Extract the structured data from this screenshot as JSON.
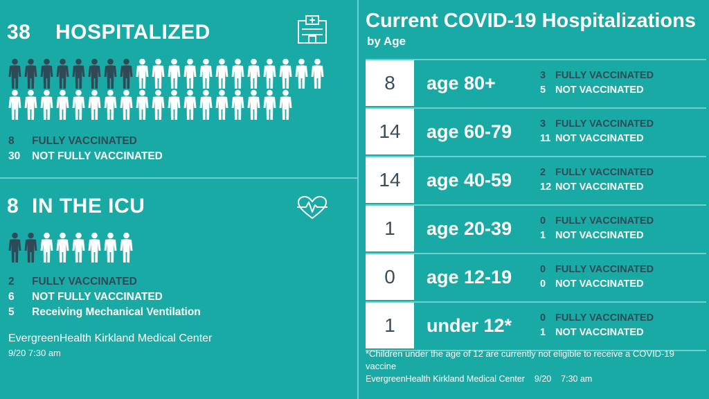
{
  "hospitalized": {
    "count": "38",
    "label": "HOSPITALIZED",
    "fully_vaccinated": 8,
    "not_fully_vaccinated": 30,
    "rows": [
      {
        "num": "8",
        "label": "FULLY VACCINATED",
        "tone": "dark"
      },
      {
        "num": "30",
        "label": "NOT FULLY VACCINATED",
        "tone": "white"
      }
    ]
  },
  "icu": {
    "count": "8",
    "label": "IN THE ICU",
    "fully_vaccinated": 2,
    "not_fully_vaccinated": 6,
    "rows": [
      {
        "num": "2",
        "label": "FULLY VACCINATED",
        "tone": "dark"
      },
      {
        "num": "6",
        "label": "NOT FULLY VACCINATED",
        "tone": "white"
      },
      {
        "num": "5",
        "label": "Receiving Mechanical Ventilation",
        "tone": "white"
      }
    ]
  },
  "left_credit": {
    "source": "EvergreenHealth Kirkland Medical Center",
    "time": "9/20 7:30 am"
  },
  "by_age": {
    "title": "Current COVID-19 Hospitalizations",
    "subtitle": "by Age",
    "rows": [
      {
        "count": "8",
        "age": "age 80+",
        "fv": "3",
        "fv_label": "FULLY VACCINATED",
        "nv": "5",
        "nv_label": "NOT VACCINATED"
      },
      {
        "count": "14",
        "age": "age 60-79",
        "fv": "3",
        "fv_label": "FULLY VACCINATED",
        "nv": "11",
        "nv_label": "NOT VACCINATED"
      },
      {
        "count": "14",
        "age": "age 40-59",
        "fv": "2",
        "fv_label": "FULLY VACCINATED",
        "nv": "12",
        "nv_label": "NOT VACCINATED"
      },
      {
        "count": "1",
        "age": "age 20-39",
        "fv": "0",
        "fv_label": "FULLY VACCINATED",
        "nv": "1",
        "nv_label": "NOT VACCINATED"
      },
      {
        "count": "0",
        "age": "age 12-19",
        "fv": "0",
        "fv_label": "FULLY VACCINATED",
        "nv": "0",
        "nv_label": "NOT VACCINATED"
      },
      {
        "count": "1",
        "age": "under 12*",
        "fv": "0",
        "fv_label": "FULLY VACCINATED",
        "nv": "1",
        "nv_label": "NOT VACCINATED"
      }
    ],
    "footnote": "*Children under the age of 12 are currently not eligible to receive a COVID-19 vaccine",
    "credit_source": "EvergreenHealth Kirkland Medical Center",
    "credit_date": "9/20",
    "credit_time": "7:30 am"
  },
  "icons": {
    "hospital": "hospital-building-icon",
    "heartbeat": "heart-pulse-icon",
    "person": "person-icon"
  },
  "colors": {
    "background": "#1aaaa6",
    "dark": "#2f4a56",
    "white": "#ffffff",
    "divider": "#6fcfcb"
  }
}
